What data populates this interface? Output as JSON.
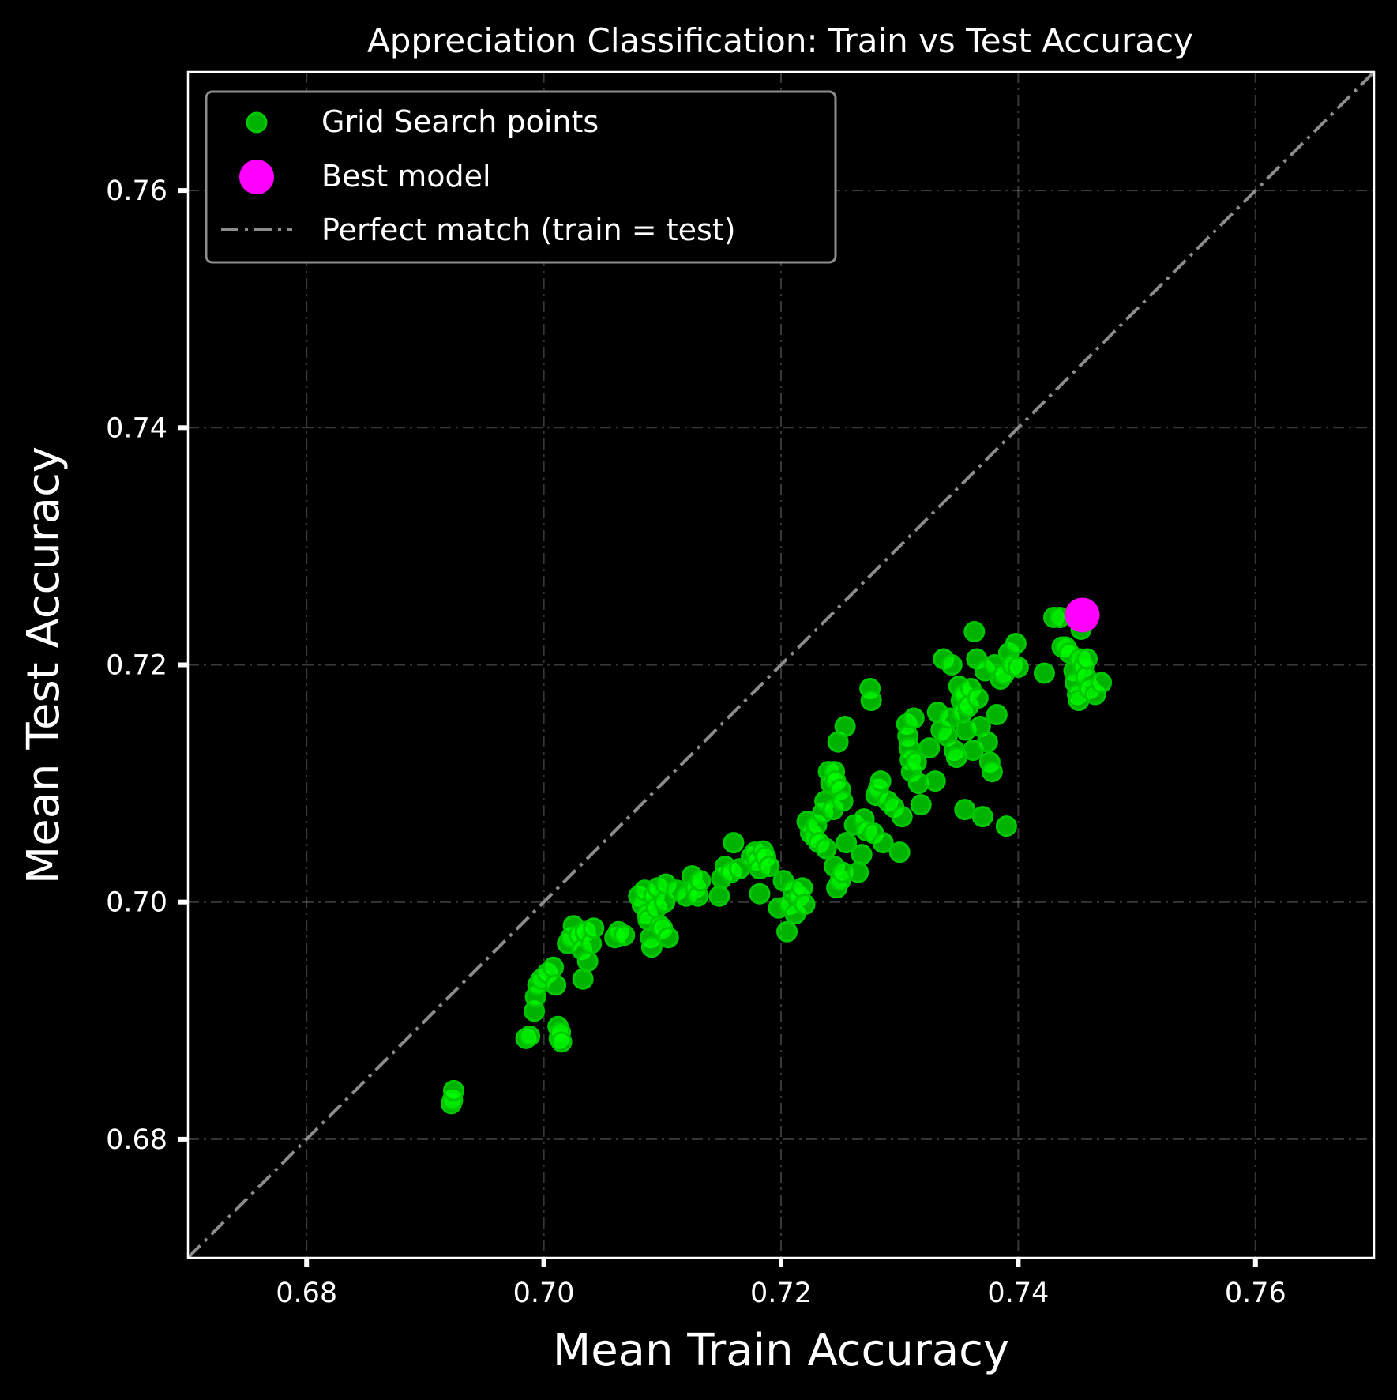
{
  "chart_data": {
    "type": "scatter",
    "title": "Appreciation Classification: Train vs Test Accuracy",
    "xlabel": "Mean Train Accuracy",
    "ylabel": "Mean Test Accuracy",
    "xlim": [
      0.67,
      0.77
    ],
    "ylim": [
      0.67,
      0.77
    ],
    "x_ticks": [
      "0.68",
      "0.70",
      "0.72",
      "0.74",
      "0.76"
    ],
    "y_ticks": [
      "0.68",
      "0.70",
      "0.72",
      "0.74",
      "0.76"
    ],
    "grid": true,
    "legend_position": "upper-left",
    "colors": {
      "points": "#00ff00",
      "best": "#ff00ff",
      "reference": "#8c8c8c",
      "background": "#000000"
    },
    "legend": [
      "Grid Search points",
      "Best model",
      "Perfect match (train = test)"
    ],
    "series": [
      {
        "name": "Grid Search points",
        "points": [
          [
            0.6922,
            0.683
          ],
          [
            0.6923,
            0.6833
          ],
          [
            0.6924,
            0.6841
          ],
          [
            0.6985,
            0.6885
          ],
          [
            0.6988,
            0.6887
          ],
          [
            0.6992,
            0.6908
          ],
          [
            0.6993,
            0.692
          ],
          [
            0.6995,
            0.693
          ],
          [
            0.6998,
            0.6935
          ],
          [
            0.7003,
            0.694
          ],
          [
            0.7008,
            0.6945
          ],
          [
            0.701,
            0.693
          ],
          [
            0.7012,
            0.6895
          ],
          [
            0.7013,
            0.6885
          ],
          [
            0.7014,
            0.689
          ],
          [
            0.7015,
            0.6882
          ],
          [
            0.702,
            0.6965
          ],
          [
            0.7023,
            0.697
          ],
          [
            0.7025,
            0.698
          ],
          [
            0.703,
            0.6972
          ],
          [
            0.7032,
            0.696
          ],
          [
            0.7035,
            0.6975
          ],
          [
            0.7037,
            0.695
          ],
          [
            0.7033,
            0.6935
          ],
          [
            0.704,
            0.6965
          ],
          [
            0.7042,
            0.6978
          ],
          [
            0.706,
            0.697
          ],
          [
            0.7063,
            0.6975
          ],
          [
            0.7068,
            0.6972
          ],
          [
            0.708,
            0.7005
          ],
          [
            0.7083,
            0.6998
          ],
          [
            0.7085,
            0.701
          ],
          [
            0.7087,
            0.699
          ],
          [
            0.7088,
            0.6985
          ],
          [
            0.709,
            0.697
          ],
          [
            0.7091,
            0.6962
          ],
          [
            0.7093,
            0.7005
          ],
          [
            0.7095,
            0.6995
          ],
          [
            0.7096,
            0.7012
          ],
          [
            0.7098,
            0.698
          ],
          [
            0.71,
            0.6978
          ],
          [
            0.7102,
            0.7
          ],
          [
            0.7103,
            0.7015
          ],
          [
            0.7105,
            0.697
          ],
          [
            0.7112,
            0.701
          ],
          [
            0.712,
            0.7005
          ],
          [
            0.7125,
            0.7022
          ],
          [
            0.7128,
            0.7012
          ],
          [
            0.713,
            0.7005
          ],
          [
            0.7132,
            0.7018
          ],
          [
            0.7148,
            0.7005
          ],
          [
            0.715,
            0.702
          ],
          [
            0.7153,
            0.703
          ],
          [
            0.7158,
            0.7025
          ],
          [
            0.716,
            0.705
          ],
          [
            0.7165,
            0.7028
          ],
          [
            0.7175,
            0.7038
          ],
          [
            0.7178,
            0.7042
          ],
          [
            0.718,
            0.7035
          ],
          [
            0.7182,
            0.7028
          ],
          [
            0.7185,
            0.7043
          ],
          [
            0.7187,
            0.7038
          ],
          [
            0.719,
            0.703
          ],
          [
            0.7182,
            0.7007
          ],
          [
            0.7198,
            0.6995
          ],
          [
            0.7202,
            0.7018
          ],
          [
            0.7205,
            0.6975
          ],
          [
            0.7207,
            0.6998
          ],
          [
            0.721,
            0.701
          ],
          [
            0.7212,
            0.699
          ],
          [
            0.7215,
            0.7005
          ],
          [
            0.7218,
            0.7012
          ],
          [
            0.722,
            0.6998
          ],
          [
            0.7222,
            0.7068
          ],
          [
            0.7225,
            0.7058
          ],
          [
            0.7228,
            0.7055
          ],
          [
            0.723,
            0.7065
          ],
          [
            0.7232,
            0.705
          ],
          [
            0.7235,
            0.7075
          ],
          [
            0.7237,
            0.7085
          ],
          [
            0.7238,
            0.7045
          ],
          [
            0.724,
            0.711
          ],
          [
            0.7242,
            0.71
          ],
          [
            0.7244,
            0.7078
          ],
          [
            0.7245,
            0.711
          ],
          [
            0.7246,
            0.7102
          ],
          [
            0.7248,
            0.7135
          ],
          [
            0.725,
            0.7095
          ],
          [
            0.7252,
            0.7085
          ],
          [
            0.7254,
            0.7148
          ],
          [
            0.7245,
            0.703
          ],
          [
            0.7247,
            0.7012
          ],
          [
            0.725,
            0.7018
          ],
          [
            0.7252,
            0.7025
          ],
          [
            0.7255,
            0.705
          ],
          [
            0.7262,
            0.7065
          ],
          [
            0.7265,
            0.7025
          ],
          [
            0.7268,
            0.704
          ],
          [
            0.727,
            0.707
          ],
          [
            0.7272,
            0.706
          ],
          [
            0.7275,
            0.718
          ],
          [
            0.7276,
            0.717
          ],
          [
            0.7278,
            0.7058
          ],
          [
            0.728,
            0.709
          ],
          [
            0.7282,
            0.7095
          ],
          [
            0.7284,
            0.7102
          ],
          [
            0.7286,
            0.705
          ],
          [
            0.729,
            0.7085
          ],
          [
            0.7295,
            0.708
          ],
          [
            0.73,
            0.7042
          ],
          [
            0.7302,
            0.7072
          ],
          [
            0.7306,
            0.715
          ],
          [
            0.7307,
            0.714
          ],
          [
            0.7308,
            0.713
          ],
          [
            0.7309,
            0.712
          ],
          [
            0.731,
            0.711
          ],
          [
            0.7312,
            0.7155
          ],
          [
            0.7314,
            0.7118
          ],
          [
            0.7316,
            0.71
          ],
          [
            0.7318,
            0.7082
          ],
          [
            0.7325,
            0.713
          ],
          [
            0.733,
            0.7102
          ],
          [
            0.7332,
            0.716
          ],
          [
            0.7335,
            0.7145
          ],
          [
            0.7337,
            0.7205
          ],
          [
            0.734,
            0.714
          ],
          [
            0.7342,
            0.7155
          ],
          [
            0.7344,
            0.72
          ],
          [
            0.7346,
            0.7128
          ],
          [
            0.7348,
            0.7122
          ],
          [
            0.735,
            0.7182
          ],
          [
            0.7352,
            0.717
          ],
          [
            0.7353,
            0.716
          ],
          [
            0.7354,
            0.7175
          ],
          [
            0.7355,
            0.7078
          ],
          [
            0.7356,
            0.7145
          ],
          [
            0.7358,
            0.7165
          ],
          [
            0.736,
            0.718
          ],
          [
            0.7362,
            0.7128
          ],
          [
            0.7363,
            0.7228
          ],
          [
            0.7365,
            0.7205
          ],
          [
            0.7366,
            0.7172
          ],
          [
            0.7368,
            0.7148
          ],
          [
            0.737,
            0.7072
          ],
          [
            0.7372,
            0.7195
          ],
          [
            0.7374,
            0.7135
          ],
          [
            0.7376,
            0.7118
          ],
          [
            0.7378,
            0.711
          ],
          [
            0.738,
            0.72
          ],
          [
            0.7382,
            0.7158
          ],
          [
            0.7385,
            0.7188
          ],
          [
            0.7388,
            0.7192
          ],
          [
            0.739,
            0.7064
          ],
          [
            0.7392,
            0.721
          ],
          [
            0.7395,
            0.72
          ],
          [
            0.7398,
            0.7218
          ],
          [
            0.74,
            0.7198
          ],
          [
            0.7422,
            0.7193
          ],
          [
            0.743,
            0.724
          ],
          [
            0.7435,
            0.724
          ],
          [
            0.7437,
            0.7215
          ],
          [
            0.744,
            0.7215
          ],
          [
            0.7443,
            0.721
          ],
          [
            0.7447,
            0.7195
          ],
          [
            0.7448,
            0.7185
          ],
          [
            0.745,
            0.7175
          ],
          [
            0.7451,
            0.717
          ],
          [
            0.7452,
            0.7205
          ],
          [
            0.7453,
            0.723
          ],
          [
            0.7455,
            0.7198
          ],
          [
            0.7457,
            0.719
          ],
          [
            0.7458,
            0.7205
          ],
          [
            0.746,
            0.718
          ],
          [
            0.7465,
            0.7175
          ],
          [
            0.747,
            0.7185
          ]
        ]
      },
      {
        "name": "Best model",
        "points": [
          [
            0.7454,
            0.7242
          ]
        ]
      },
      {
        "name": "Perfect match (train = test)",
        "points": [
          [
            0.67,
            0.67
          ],
          [
            0.77,
            0.77
          ]
        ]
      }
    ]
  }
}
